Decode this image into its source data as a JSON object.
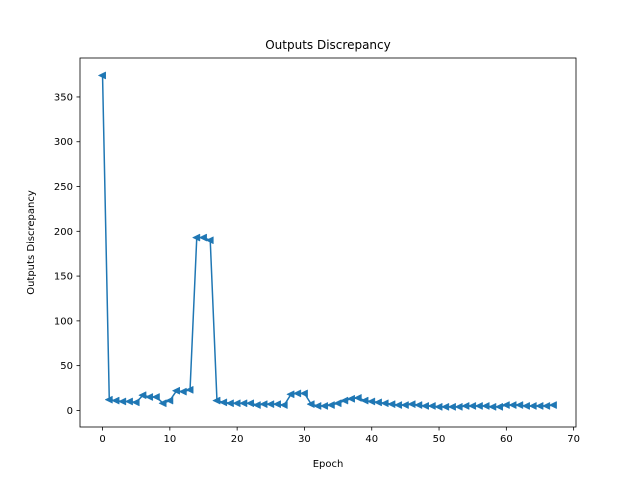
{
  "chart_data": {
    "type": "line",
    "title": "Outputs Discrepancy",
    "xlabel": "Epoch",
    "ylabel": "Outputs Discrepancy",
    "xlim": [
      -3.35,
      70.35
    ],
    "ylim": [
      -18.5,
      393.5
    ],
    "xticks": [
      0,
      10,
      20,
      30,
      40,
      50,
      60,
      70
    ],
    "yticks": [
      0,
      50,
      100,
      150,
      200,
      250,
      300,
      350
    ],
    "grid": false,
    "marker": "triangle-left",
    "color": "#1f77b4",
    "series": [
      {
        "x": [
          0,
          1,
          2,
          3,
          4,
          5,
          6,
          7,
          8,
          9,
          10,
          11,
          12,
          13,
          14,
          15,
          16,
          17,
          18,
          19,
          20,
          21,
          22,
          23,
          24,
          25,
          26,
          27,
          28,
          29,
          30,
          31,
          32,
          33,
          34,
          35,
          36,
          37,
          38,
          39,
          40,
          41,
          42,
          43,
          44,
          45,
          46,
          47,
          48,
          49,
          50,
          51,
          52,
          53,
          54,
          55,
          56,
          57,
          58,
          59,
          60,
          61,
          62,
          63,
          64,
          65,
          66,
          67
        ],
        "values": [
          374,
          12,
          11,
          10,
          10,
          9,
          17,
          15,
          15,
          8,
          11,
          22,
          21,
          23,
          193,
          193,
          190,
          11,
          9,
          8,
          8,
          8,
          8,
          6,
          7,
          7,
          7,
          6,
          18,
          19,
          19,
          7,
          5,
          5,
          6,
          8,
          11,
          13,
          14,
          11,
          10,
          9,
          8,
          7,
          6,
          6,
          7,
          6,
          5,
          5,
          4,
          4,
          4,
          4,
          5,
          5,
          5,
          5,
          4,
          4,
          6,
          6,
          6,
          5,
          5,
          5,
          5,
          6
        ]
      }
    ]
  }
}
